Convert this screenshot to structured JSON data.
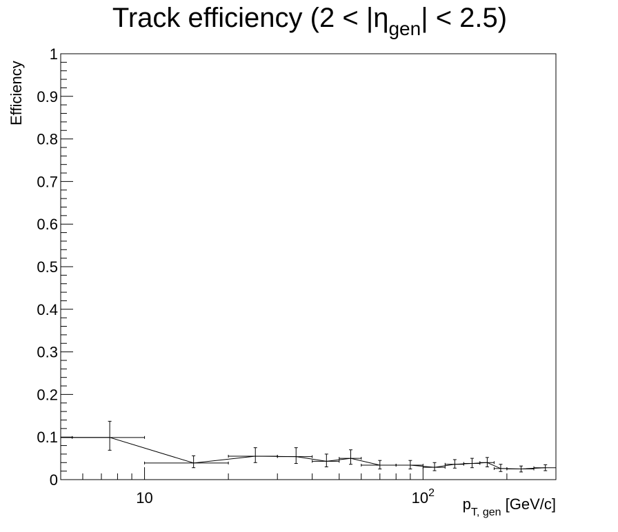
{
  "chart_data": {
    "type": "scatter",
    "title": {
      "main": "Track efficiency (2 < |",
      "symbol": "η",
      "sub": "gen",
      "end": "| < 2.5)"
    },
    "ylabel": "Efficiency",
    "xlabel": {
      "main": "p",
      "sub": "T, gen",
      "unit": " [GeV/c]"
    },
    "xscale": "log",
    "xlim": [
      5,
      300
    ],
    "ylim": [
      0,
      1
    ],
    "y_ticks": [
      "0",
      "0.1",
      "0.2",
      "0.3",
      "0.4",
      "0.5",
      "0.6",
      "0.7",
      "0.8",
      "0.9",
      "1"
    ],
    "x_ticks": [
      {
        "value": 10,
        "base": "10",
        "exp": ""
      },
      {
        "value": 100,
        "base": "10",
        "exp": "2"
      }
    ],
    "grid": false,
    "legend": "none",
    "line_color": "#000000",
    "series": [
      {
        "points": [
          {
            "x": 5.25,
            "xlo": 5.0,
            "xhi": 5.5,
            "y": 0.099,
            "ylo": 0.099,
            "yhi": 0.099
          },
          {
            "x": 7.5,
            "xlo": 5.0,
            "xhi": 10.0,
            "y": 0.099,
            "ylo": 0.069,
            "yhi": 0.137
          },
          {
            "x": 15,
            "xlo": 10,
            "xhi": 20,
            "y": 0.039,
            "ylo": 0.028,
            "yhi": 0.056
          },
          {
            "x": 25,
            "xlo": 20,
            "xhi": 30,
            "y": 0.055,
            "ylo": 0.04,
            "yhi": 0.075
          },
          {
            "x": 35,
            "xlo": 30,
            "xhi": 40,
            "y": 0.054,
            "ylo": 0.038,
            "yhi": 0.075
          },
          {
            "x": 45,
            "xlo": 40,
            "xhi": 50,
            "y": 0.043,
            "ylo": 0.03,
            "yhi": 0.06
          },
          {
            "x": 55,
            "xlo": 50,
            "xhi": 60,
            "y": 0.05,
            "ylo": 0.036,
            "yhi": 0.07
          },
          {
            "x": 70,
            "xlo": 60,
            "xhi": 80,
            "y": 0.034,
            "ylo": 0.025,
            "yhi": 0.045
          },
          {
            "x": 90,
            "xlo": 80,
            "xhi": 100,
            "y": 0.034,
            "ylo": 0.025,
            "yhi": 0.045
          },
          {
            "x": 110,
            "xlo": 100,
            "xhi": 120,
            "y": 0.029,
            "ylo": 0.021,
            "yhi": 0.04
          },
          {
            "x": 130,
            "xlo": 120,
            "xhi": 140,
            "y": 0.036,
            "ylo": 0.027,
            "yhi": 0.047
          },
          {
            "x": 150,
            "xlo": 140,
            "xhi": 160,
            "y": 0.038,
            "ylo": 0.028,
            "yhi": 0.05
          },
          {
            "x": 170,
            "xlo": 160,
            "xhi": 180,
            "y": 0.04,
            "ylo": 0.03,
            "yhi": 0.052
          },
          {
            "x": 190,
            "xlo": 180,
            "xhi": 200,
            "y": 0.026,
            "ylo": 0.019,
            "yhi": 0.036
          },
          {
            "x": 225,
            "xlo": 200,
            "xhi": 250,
            "y": 0.025,
            "ylo": 0.018,
            "yhi": 0.032
          },
          {
            "x": 275,
            "xlo": 250,
            "xhi": 300,
            "y": 0.028,
            "ylo": 0.021,
            "yhi": 0.035
          }
        ]
      }
    ]
  }
}
